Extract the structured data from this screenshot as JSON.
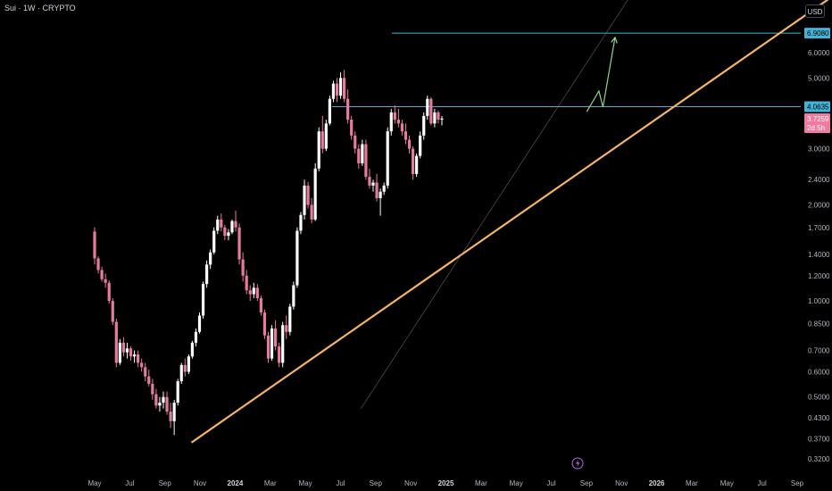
{
  "header": {
    "title": "Sui · 1W · CRYPTO",
    "currency": "USD"
  },
  "colors": {
    "background": "#000000",
    "candle_up": "#ffffff",
    "candle_down": "#e57ca0",
    "trendline": "#f5b467",
    "level_line": "#46b3d6",
    "projection": "#8fd48b",
    "price_tag_level": "#46b3d6",
    "price_tag_current": "#f07aa0"
  },
  "chart_data": {
    "type": "candlestick",
    "symbol": "Sui",
    "interval": "1W",
    "exchange": "CRYPTO",
    "y_scale": "log",
    "ylim": [
      0.31,
      9.0
    ],
    "y_ticks": [
      "6.0000",
      "5.0000",
      "4.0000",
      "3.0000",
      "2.4000",
      "2.0000",
      "1.7000",
      "1.4000",
      "1.2000",
      "1.0000",
      "0.8500",
      "0.7000",
      "0.6000",
      "0.5000",
      "0.4300",
      "0.3700",
      "0.3200"
    ],
    "x_ticks": [
      {
        "label": "May",
        "bold": false
      },
      {
        "label": "Jul",
        "bold": false
      },
      {
        "label": "Sep",
        "bold": false
      },
      {
        "label": "Nov",
        "bold": false
      },
      {
        "label": "2024",
        "bold": true
      },
      {
        "label": "Mar",
        "bold": false
      },
      {
        "label": "May",
        "bold": false
      },
      {
        "label": "Jul",
        "bold": false
      },
      {
        "label": "Sep",
        "bold": false
      },
      {
        "label": "Nov",
        "bold": false
      },
      {
        "label": "2025",
        "bold": true
      },
      {
        "label": "Mar",
        "bold": false
      },
      {
        "label": "May",
        "bold": false
      },
      {
        "label": "Jul",
        "bold": false
      },
      {
        "label": "Sep",
        "bold": false
      },
      {
        "label": "Nov",
        "bold": false
      },
      {
        "label": "2026",
        "bold": true
      },
      {
        "label": "Mar",
        "bold": false
      },
      {
        "label": "May",
        "bold": false
      },
      {
        "label": "Jul",
        "bold": false
      },
      {
        "label": "Sep",
        "bold": false
      }
    ],
    "ohlc": [
      [
        1.65,
        1.7,
        1.3,
        1.36
      ],
      [
        1.36,
        1.38,
        1.22,
        1.25
      ],
      [
        1.25,
        1.28,
        1.15,
        1.17
      ],
      [
        1.17,
        1.22,
        1.1,
        1.14
      ],
      [
        1.14,
        1.16,
        0.98,
        1.0
      ],
      [
        1.0,
        1.02,
        0.84,
        0.86
      ],
      [
        0.86,
        0.88,
        0.62,
        0.64
      ],
      [
        0.64,
        0.76,
        0.63,
        0.74
      ],
      [
        0.74,
        0.77,
        0.67,
        0.69
      ],
      [
        0.69,
        0.74,
        0.66,
        0.71
      ],
      [
        0.71,
        0.72,
        0.65,
        0.67
      ],
      [
        0.67,
        0.7,
        0.64,
        0.68
      ],
      [
        0.68,
        0.7,
        0.62,
        0.64
      ],
      [
        0.64,
        0.66,
        0.6,
        0.62
      ],
      [
        0.62,
        0.64,
        0.56,
        0.58
      ],
      [
        0.58,
        0.61,
        0.54,
        0.55
      ],
      [
        0.55,
        0.57,
        0.49,
        0.51
      ],
      [
        0.51,
        0.53,
        0.46,
        0.47
      ],
      [
        0.47,
        0.5,
        0.45,
        0.48
      ],
      [
        0.48,
        0.52,
        0.46,
        0.5
      ],
      [
        0.5,
        0.52,
        0.44,
        0.45
      ],
      [
        0.45,
        0.48,
        0.4,
        0.42
      ],
      [
        0.42,
        0.49,
        0.38,
        0.48
      ],
      [
        0.48,
        0.57,
        0.47,
        0.56
      ],
      [
        0.56,
        0.64,
        0.55,
        0.63
      ],
      [
        0.63,
        0.66,
        0.58,
        0.6
      ],
      [
        0.6,
        0.68,
        0.59,
        0.67
      ],
      [
        0.67,
        0.75,
        0.66,
        0.74
      ],
      [
        0.74,
        0.82,
        0.72,
        0.8
      ],
      [
        0.8,
        0.92,
        0.79,
        0.9
      ],
      [
        0.9,
        1.15,
        0.88,
        1.13
      ],
      [
        1.13,
        1.34,
        1.1,
        1.3
      ],
      [
        1.3,
        1.45,
        1.26,
        1.42
      ],
      [
        1.42,
        1.7,
        1.4,
        1.66
      ],
      [
        1.66,
        1.85,
        1.62,
        1.8
      ],
      [
        1.8,
        1.88,
        1.65,
        1.7
      ],
      [
        1.7,
        1.73,
        1.55,
        1.6
      ],
      [
        1.6,
        1.68,
        1.55,
        1.64
      ],
      [
        1.64,
        1.8,
        1.62,
        1.78
      ],
      [
        1.78,
        1.92,
        1.65,
        1.7
      ],
      [
        1.7,
        1.75,
        1.3,
        1.35
      ],
      [
        1.35,
        1.42,
        1.15,
        1.2
      ],
      [
        1.2,
        1.25,
        1.05,
        1.08
      ],
      [
        1.08,
        1.12,
        1.0,
        1.05
      ],
      [
        1.05,
        1.14,
        1.02,
        1.1
      ],
      [
        1.1,
        1.13,
        1.0,
        1.02
      ],
      [
        1.02,
        1.04,
        0.9,
        0.92
      ],
      [
        0.92,
        0.94,
        0.76,
        0.78
      ],
      [
        0.78,
        0.8,
        0.64,
        0.66
      ],
      [
        0.66,
        0.84,
        0.65,
        0.82
      ],
      [
        0.82,
        0.87,
        0.7,
        0.72
      ],
      [
        0.72,
        0.74,
        0.62,
        0.64
      ],
      [
        0.64,
        0.86,
        0.62,
        0.84
      ],
      [
        0.84,
        0.9,
        0.76,
        0.8
      ],
      [
        0.8,
        0.98,
        0.78,
        0.96
      ],
      [
        0.96,
        1.15,
        0.94,
        1.12
      ],
      [
        1.12,
        1.7,
        1.1,
        1.66
      ],
      [
        1.66,
        1.9,
        1.62,
        1.86
      ],
      [
        1.86,
        2.4,
        1.8,
        2.3
      ],
      [
        2.3,
        2.36,
        1.95,
        2.0
      ],
      [
        2.0,
        2.1,
        1.75,
        1.8
      ],
      [
        1.8,
        2.7,
        1.78,
        2.6
      ],
      [
        2.6,
        3.5,
        2.55,
        3.4
      ],
      [
        3.4,
        3.8,
        2.9,
        3.0
      ],
      [
        3.0,
        3.7,
        2.95,
        3.6
      ],
      [
        3.6,
        4.4,
        3.55,
        4.3
      ],
      [
        4.3,
        4.9,
        4.2,
        4.8
      ],
      [
        4.8,
        5.0,
        4.2,
        4.4
      ],
      [
        4.4,
        5.2,
        4.3,
        5.0
      ],
      [
        5.0,
        5.3,
        4.2,
        4.3
      ],
      [
        4.3,
        4.6,
        3.6,
        3.7
      ],
      [
        3.7,
        3.8,
        3.2,
        3.3
      ],
      [
        3.3,
        3.4,
        2.9,
        3.0
      ],
      [
        3.0,
        3.1,
        2.6,
        2.7
      ],
      [
        2.7,
        3.2,
        2.65,
        3.1
      ],
      [
        3.1,
        3.2,
        2.4,
        2.45
      ],
      [
        2.45,
        2.6,
        2.25,
        2.3
      ],
      [
        2.3,
        2.4,
        2.2,
        2.35
      ],
      [
        2.35,
        2.5,
        2.05,
        2.1
      ],
      [
        2.1,
        2.25,
        1.85,
        2.2
      ],
      [
        2.2,
        2.35,
        2.15,
        2.3
      ],
      [
        2.3,
        3.5,
        2.25,
        3.4
      ],
      [
        3.4,
        4.0,
        3.3,
        3.9
      ],
      [
        3.9,
        4.1,
        3.6,
        3.7
      ],
      [
        3.7,
        4.0,
        3.5,
        3.6
      ],
      [
        3.6,
        3.7,
        3.3,
        3.4
      ],
      [
        3.4,
        3.6,
        3.1,
        3.2
      ],
      [
        3.2,
        3.3,
        2.9,
        3.0
      ],
      [
        3.0,
        3.05,
        2.4,
        2.5
      ],
      [
        2.5,
        2.9,
        2.45,
        2.85
      ],
      [
        2.85,
        3.4,
        2.8,
        3.3
      ],
      [
        3.3,
        3.9,
        3.2,
        3.8
      ],
      [
        3.8,
        4.4,
        3.7,
        4.3
      ],
      [
        4.3,
        4.35,
        3.55,
        3.6
      ],
      [
        3.6,
        4.0,
        3.5,
        3.9
      ],
      [
        3.9,
        3.95,
        3.6,
        3.7
      ],
      [
        3.7,
        3.8,
        3.55,
        3.73
      ]
    ],
    "horizontal_levels": [
      6.908,
      4.0635
    ],
    "last_price": 3.7259,
    "countdown": "2d 5h",
    "price_tags": {
      "upper": "6.9080",
      "level": "4.0635",
      "current": "3.7259",
      "countdown": "2d 5h"
    },
    "trendlines": [
      {
        "style": "solid",
        "from": {
          "date": "2023-10-16",
          "price": 0.36
        },
        "to": {
          "date": "2026-11-01",
          "price": 9.0
        }
      },
      {
        "style": "thin",
        "from": {
          "date": "2024-08-05",
          "price": 0.46
        },
        "to": {
          "date": "2025-11-15",
          "price": 9.0
        }
      }
    ],
    "projection_path": [
      {
        "date": "2025-09-01",
        "price": 3.92
      },
      {
        "date": "2025-09-22",
        "price": 4.55
      },
      {
        "date": "2025-09-29",
        "price": 4.05
      },
      {
        "date": "2025-10-20",
        "price": 6.7
      }
    ]
  }
}
